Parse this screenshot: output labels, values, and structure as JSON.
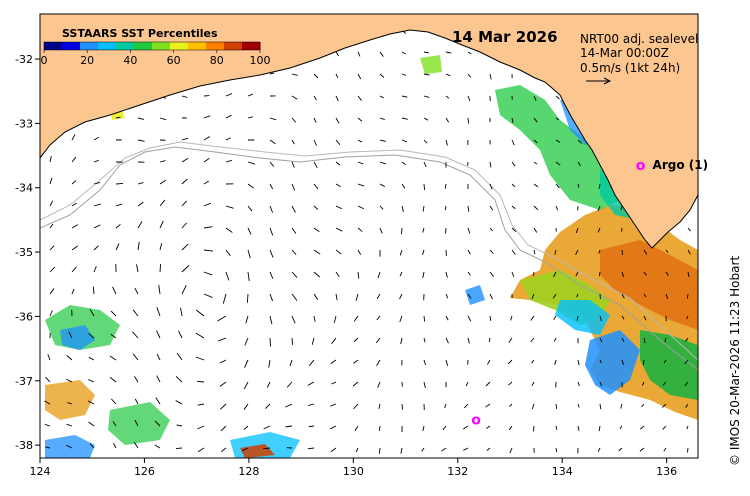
{
  "map": {
    "date": "14 Mar 2026",
    "product": "NRT00 adj. sealevel",
    "timestamp": "14-Mar 00:00Z",
    "scale_label": "0.5m/s (1kt 24h)",
    "credit": "© IMOS 20-Mar-2026 11:23 Hobart",
    "lon_ticks": [
      "124",
      "126",
      "128",
      "130",
      "132",
      "134",
      "136"
    ],
    "lat_ticks": [
      "-32",
      "-33",
      "-34",
      "-35",
      "-36",
      "-37",
      "-38"
    ],
    "lon_values": [
      124,
      126,
      128,
      130,
      132,
      134,
      136
    ],
    "lat_values": [
      -32,
      -33,
      -34,
      -35,
      -36,
      -37,
      -38
    ],
    "extent": {
      "lon_min": 124,
      "lon_max": 136.6,
      "lat_min": -38.2,
      "lat_max": -31.3
    }
  },
  "colorbar": {
    "title": "SSTAARS SST Percentiles",
    "labels": [
      "0",
      "20",
      "40",
      "60",
      "80",
      "100"
    ],
    "colors": [
      "#00008b",
      "#0000e0",
      "#1e90ff",
      "#00bfff",
      "#00c8a0",
      "#20c840",
      "#80e020",
      "#e8f020",
      "#ffc000",
      "#ff8000",
      "#d04000",
      "#a00000"
    ]
  },
  "argo": [
    {
      "label": "Argo (1)",
      "marker": "o",
      "lon": 135.5,
      "lat": -33.65
    },
    {
      "label": "",
      "marker": "o",
      "lon": 132.35,
      "lat": -37.6
    }
  ],
  "colors": {
    "land": "#fcc690",
    "ocean": "#ffffff",
    "argo": "#ff00ff",
    "shelf": "#a0a0a0"
  }
}
